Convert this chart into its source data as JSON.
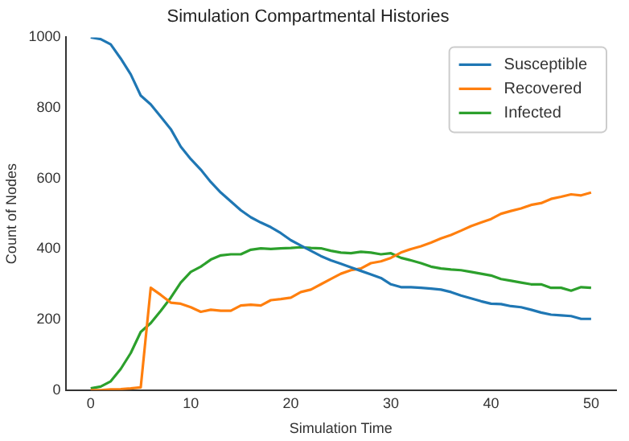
{
  "chart_data": {
    "type": "line",
    "title": "Simulation Compartmental Histories",
    "xlabel": "Simulation Time",
    "ylabel": "Count of Nodes",
    "x": [
      0,
      1,
      2,
      3,
      4,
      5,
      6,
      7,
      8,
      9,
      10,
      11,
      12,
      13,
      14,
      15,
      16,
      17,
      18,
      19,
      20,
      21,
      22,
      23,
      24,
      25,
      26,
      27,
      28,
      29,
      30,
      31,
      32,
      33,
      34,
      35,
      36,
      37,
      38,
      39,
      40,
      41,
      42,
      43,
      44,
      45,
      46,
      47,
      48,
      49,
      50
    ],
    "series": [
      {
        "name": "Susceptible",
        "color": "#1f77b4",
        "values": [
          1000,
          995,
          980,
          940,
          895,
          835,
          810,
          775,
          740,
          690,
          655,
          625,
          590,
          560,
          535,
          510,
          490,
          475,
          462,
          445,
          425,
          410,
          395,
          380,
          368,
          358,
          348,
          338,
          328,
          318,
          300,
          292,
          292,
          290,
          288,
          285,
          278,
          268,
          260,
          252,
          245,
          244,
          238,
          235,
          228,
          220,
          214,
          212,
          210,
          202,
          202
        ]
      },
      {
        "name": "Recovered",
        "color": "#ff7f0e",
        "values": [
          0,
          0,
          2,
          3,
          5,
          8,
          290,
          270,
          248,
          245,
          235,
          222,
          228,
          225,
          225,
          240,
          242,
          240,
          255,
          258,
          262,
          278,
          285,
          300,
          315,
          330,
          340,
          345,
          360,
          365,
          375,
          390,
          400,
          408,
          418,
          430,
          440,
          452,
          465,
          475,
          485,
          500,
          508,
          515,
          525,
          530,
          542,
          548,
          555,
          552,
          560
        ]
      },
      {
        "name": "Infected",
        "color": "#2ca02c",
        "values": [
          5,
          10,
          25,
          60,
          105,
          165,
          190,
          225,
          262,
          305,
          335,
          350,
          370,
          382,
          385,
          385,
          398,
          402,
          400,
          402,
          403,
          405,
          403,
          402,
          395,
          390,
          388,
          392,
          390,
          385,
          388,
          375,
          368,
          360,
          350,
          345,
          342,
          340,
          335,
          330,
          325,
          315,
          310,
          305,
          300,
          300,
          290,
          290,
          282,
          292,
          290
        ]
      }
    ],
    "xlim": [
      -2.5,
      52.5
    ],
    "xticks": [
      0,
      10,
      20,
      30,
      40,
      50
    ],
    "ylim": [
      0,
      1000
    ],
    "yticks": [
      0,
      200,
      400,
      600,
      800,
      1000
    ],
    "grid": false,
    "legend": "top right",
    "marker": "none",
    "line_style": "solid"
  }
}
